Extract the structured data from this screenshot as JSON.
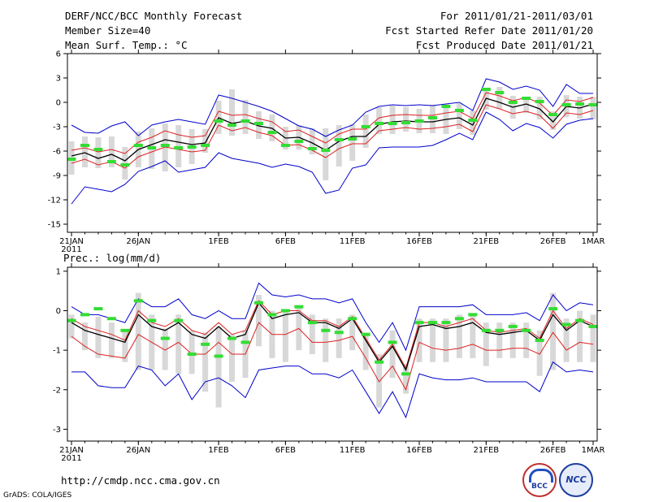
{
  "header": {
    "title": "DERF/NCC/BCC Monthly Forecast",
    "member_size": "Member Size=40",
    "variable": "Mean Surf. Temp.: °C",
    "period": "For 2011/01/21-2011/03/01",
    "started": "Fcst Started Refer Date 2011/01/20",
    "produced": "Fcst Produced Date 2011/01/21"
  },
  "footer": {
    "url": "http://cmdp.ncc.cma.gov.cn",
    "credit": "GrADS: COLA/IGES",
    "logo_left": "BCC",
    "logo_right": "NCC"
  },
  "colors": {
    "envelope": "#0000cc",
    "spread": "#dd2222",
    "mean": "#000000",
    "box": "#d8d8d8",
    "marker": "#33dd33"
  },
  "chart_data": [
    {
      "type": "line",
      "title": "Mean Surf. Temp.: °C",
      "x_ticks": [
        "21JAN",
        "26JAN",
        "1FEB",
        "6FEB",
        "11FEB",
        "16FEB",
        "21FEB",
        "26FEB",
        "1MAR"
      ],
      "x_tick_days": [
        0,
        5,
        11,
        16,
        21,
        26,
        31,
        36,
        39
      ],
      "x_sub_label": "2011",
      "ylim": [
        -16,
        6
      ],
      "yticks": [
        6,
        3,
        0,
        -3,
        -6,
        -9,
        -12,
        -15
      ],
      "series": [
        {
          "name": "mean",
          "values": [
            -6.6,
            -6.2,
            -6.9,
            -6.4,
            -7.2,
            -5.8,
            -5.2,
            -4.6,
            -4.9,
            -5.2,
            -5.0,
            -1.9,
            -2.6,
            -2.3,
            -2.9,
            -3.2,
            -4.4,
            -4.3,
            -5.0,
            -5.9,
            -4.8,
            -4.2,
            -4.2,
            -2.7,
            -2.4,
            -2.3,
            -2.4,
            -2.4,
            -2.1,
            -1.9,
            -2.8,
            0.5,
            0.0,
            -0.6,
            -0.2,
            -0.8,
            -2.4,
            -0.5,
            -0.7,
            -0.2
          ]
        },
        {
          "name": "upper",
          "values": [
            -5.9,
            -5.6,
            -6.1,
            -5.8,
            -6.3,
            -4.9,
            -4.3,
            -3.5,
            -4.0,
            -4.3,
            -4.1,
            -1.1,
            -1.6,
            -1.5,
            -2.0,
            -2.4,
            -3.6,
            -3.4,
            -4.2,
            -5.0,
            -3.9,
            -3.3,
            -3.3,
            -1.9,
            -1.6,
            -1.5,
            -1.6,
            -1.6,
            -1.3,
            -1.1,
            -2.0,
            1.2,
            0.8,
            0.2,
            0.6,
            -0.1,
            -1.6,
            0.3,
            0.1,
            0.6
          ]
        },
        {
          "name": "lower",
          "values": [
            -7.5,
            -7.0,
            -7.7,
            -7.3,
            -8.1,
            -6.7,
            -6.1,
            -5.5,
            -5.8,
            -6.1,
            -5.9,
            -2.8,
            -3.5,
            -3.1,
            -3.7,
            -4.1,
            -5.3,
            -5.2,
            -5.9,
            -6.8,
            -5.7,
            -5.1,
            -5.1,
            -3.5,
            -3.3,
            -3.1,
            -3.3,
            -3.2,
            -3.0,
            -2.7,
            -3.6,
            -0.3,
            -0.8,
            -1.4,
            -1.1,
            -1.6,
            -3.2,
            -1.3,
            -1.5,
            -1.0
          ]
        },
        {
          "name": "max",
          "values": [
            -2.8,
            -3.7,
            -3.8,
            -2.9,
            -2.4,
            -4.1,
            -2.8,
            -2.4,
            -2.1,
            -2.4,
            -2.7,
            0.9,
            0.5,
            0.0,
            -0.5,
            -1.1,
            -2.0,
            -2.9,
            -3.3,
            -4.2,
            -3.4,
            -2.8,
            -1.2,
            -0.5,
            -0.3,
            -0.4,
            -0.3,
            -0.4,
            -0.2,
            0.0,
            -1.0,
            2.9,
            2.5,
            1.6,
            2.0,
            1.5,
            -0.5,
            2.2,
            1.1,
            1.1
          ]
        },
        {
          "name": "min",
          "values": [
            -12.5,
            -10.4,
            -10.7,
            -11.0,
            -10.1,
            -8.5,
            -7.9,
            -7.2,
            -8.6,
            -8.3,
            -8.0,
            -6.2,
            -6.9,
            -7.2,
            -7.5,
            -8.0,
            -7.6,
            -7.9,
            -8.6,
            -11.2,
            -10.8,
            -8.1,
            -7.7,
            -5.6,
            -5.5,
            -5.5,
            -5.5,
            -5.3,
            -4.6,
            -3.8,
            -4.6,
            -1.2,
            -2.1,
            -3.5,
            -2.6,
            -3.1,
            -4.4,
            -2.7,
            -2.2,
            -2.0
          ]
        },
        {
          "name": "ensemble_mean_marker",
          "values": [
            -7.0,
            -5.3,
            -5.8,
            -7.3,
            -7.7,
            -5.3,
            -5.6,
            -5.3,
            -5.6,
            -5.5,
            -5.3,
            -2.3,
            -2.8,
            -2.3,
            -2.6,
            -3.7,
            -5.3,
            -4.8,
            -5.7,
            -5.9,
            -4.6,
            -4.5,
            -3.0,
            -2.6,
            -2.6,
            -2.5,
            -2.3,
            -1.9,
            -0.5,
            -1.0,
            -2.2,
            1.6,
            1.2,
            0.0,
            0.5,
            0.1,
            -1.5,
            -0.3,
            -0.2,
            -0.3
          ]
        },
        {
          "name": "box_top",
          "values": [
            -4.8,
            -4.2,
            -4.3,
            -4.2,
            -5.5,
            -3.6,
            -3.2,
            -2.6,
            -2.8,
            -3.3,
            -3.3,
            0.2,
            1.6,
            0.3,
            -1.1,
            -1.5,
            -3.0,
            -2.8,
            -3.2,
            -3.2,
            -2.8,
            -2.7,
            -1.5,
            -0.6,
            -0.4,
            -0.6,
            -0.8,
            -0.3,
            -0.2,
            -0.1,
            -1.0,
            1.8,
            1.9,
            0.8,
            0.7,
            0.7,
            -1.1,
            0.9,
            0.7,
            0.7
          ]
        },
        {
          "name": "box_bottom",
          "values": [
            -8.9,
            -8.0,
            -8.1,
            -8.0,
            -9.5,
            -8.0,
            -8.2,
            -8.5,
            -8.0,
            -7.6,
            -6.2,
            -3.9,
            -4.1,
            -3.9,
            -4.5,
            -4.8,
            -5.8,
            -5.8,
            -6.4,
            -9.6,
            -7.9,
            -7.2,
            -5.6,
            -3.9,
            -3.9,
            -3.6,
            -3.8,
            -3.8,
            -3.9,
            -3.3,
            -4.0,
            -0.9,
            -0.8,
            -2.0,
            -1.3,
            -2.1,
            -3.4,
            -1.8,
            -2.0,
            -2.1
          ]
        }
      ]
    },
    {
      "type": "line",
      "title": "Prec.: log(mm/d)",
      "x_ticks": [
        "21JAN",
        "26JAN",
        "1FEB",
        "6FEB",
        "11FEB",
        "16FEB",
        "21FEB",
        "26FEB",
        "1MAR"
      ],
      "x_tick_days": [
        0,
        5,
        11,
        16,
        21,
        26,
        31,
        36,
        39
      ],
      "x_sub_label": "2011",
      "ylim": [
        -3.3,
        1.1
      ],
      "yticks": [
        1,
        0,
        -1,
        -2,
        -3
      ],
      "series": [
        {
          "name": "mean",
          "values": [
            -0.3,
            -0.5,
            -0.6,
            -0.7,
            -0.8,
            -0.1,
            -0.4,
            -0.5,
            -0.3,
            -0.6,
            -0.7,
            -0.4,
            -0.7,
            -0.6,
            0.2,
            -0.2,
            -0.1,
            -0.05,
            -0.3,
            -0.3,
            -0.45,
            -0.2,
            -0.75,
            -1.3,
            -0.9,
            -1.5,
            -0.4,
            -0.35,
            -0.45,
            -0.4,
            -0.3,
            -0.55,
            -0.6,
            -0.55,
            -0.5,
            -0.75,
            -0.1,
            -0.5,
            -0.25,
            -0.4
          ]
        },
        {
          "name": "upper",
          "values": [
            -0.2,
            -0.4,
            -0.5,
            -0.6,
            -0.75,
            0.0,
            -0.3,
            -0.4,
            -0.2,
            -0.5,
            -0.6,
            -0.3,
            -0.6,
            -0.5,
            0.25,
            -0.1,
            0.0,
            0.0,
            -0.25,
            -0.25,
            -0.4,
            -0.15,
            -0.7,
            -1.25,
            -0.85,
            -1.45,
            -0.3,
            -0.3,
            -0.4,
            -0.3,
            -0.2,
            -0.5,
            -0.55,
            -0.5,
            -0.45,
            -0.7,
            0.0,
            -0.45,
            -0.2,
            -0.35
          ]
        },
        {
          "name": "lower",
          "values": [
            -0.65,
            -0.9,
            -1.1,
            -1.15,
            -1.2,
            -0.6,
            -0.8,
            -1.0,
            -0.8,
            -1.1,
            -1.1,
            -0.8,
            -1.1,
            -1.1,
            -0.3,
            -0.6,
            -0.6,
            -0.45,
            -0.8,
            -0.8,
            -0.75,
            -0.65,
            -1.2,
            -1.8,
            -1.4,
            -2.0,
            -0.8,
            -0.95,
            -1.0,
            -0.95,
            -0.85,
            -1.0,
            -1.0,
            -0.95,
            -0.95,
            -1.1,
            -0.55,
            -1.0,
            -0.8,
            -0.85
          ]
        },
        {
          "name": "max",
          "values": [
            0.1,
            -0.1,
            -0.1,
            -0.2,
            -0.3,
            0.3,
            0.1,
            0.1,
            0.3,
            -0.1,
            -0.2,
            0.0,
            -0.2,
            -0.2,
            0.7,
            0.4,
            0.35,
            0.4,
            0.3,
            0.3,
            0.2,
            0.3,
            -0.3,
            -0.8,
            -0.3,
            -1.0,
            0.1,
            0.1,
            0.1,
            0.1,
            0.15,
            -0.1,
            -0.1,
            -0.1,
            -0.05,
            -0.25,
            0.4,
            0.0,
            0.2,
            0.15
          ]
        },
        {
          "name": "min",
          "values": [
            -1.55,
            -1.55,
            -1.9,
            -1.95,
            -1.95,
            -1.4,
            -1.5,
            -1.9,
            -1.6,
            -2.25,
            -1.8,
            -1.7,
            -1.9,
            -2.2,
            -1.5,
            -1.45,
            -1.4,
            -1.4,
            -1.6,
            -1.6,
            -1.7,
            -1.5,
            -2.05,
            -2.6,
            -2.05,
            -2.7,
            -1.6,
            -1.7,
            -1.75,
            -1.75,
            -1.7,
            -1.8,
            -1.8,
            -1.8,
            -1.8,
            -2.05,
            -1.3,
            -1.55,
            -1.5,
            -1.55
          ]
        },
        {
          "name": "ensemble_mean_marker",
          "values": [
            -0.25,
            -0.1,
            0.05,
            -0.2,
            -0.5,
            0.25,
            -0.25,
            -0.7,
            -0.25,
            -1.1,
            -0.85,
            -1.15,
            -0.7,
            -0.8,
            0.2,
            -0.1,
            0.0,
            0.1,
            -0.3,
            -0.5,
            -0.55,
            -0.2,
            -0.6,
            -1.3,
            -0.8,
            -1.6,
            -0.3,
            -0.3,
            -0.3,
            -0.2,
            -0.1,
            -0.5,
            -0.5,
            -0.4,
            -0.5,
            -0.75,
            0.05,
            -0.35,
            -0.25,
            -0.4
          ]
        },
        {
          "name": "box_top",
          "values": [
            -0.1,
            -0.3,
            -0.15,
            -0.3,
            -0.5,
            0.45,
            -0.1,
            -0.45,
            -0.1,
            -0.5,
            -0.55,
            -0.4,
            -0.6,
            -0.5,
            0.4,
            0.0,
            0.0,
            0.1,
            -0.1,
            -0.2,
            -0.2,
            -0.1,
            -0.6,
            -1.1,
            -0.5,
            -1.35,
            -0.2,
            -0.2,
            -0.2,
            -0.1,
            -0.1,
            -0.3,
            -0.3,
            -0.3,
            -0.3,
            -0.5,
            0.45,
            -0.2,
            0.0,
            -0.1
          ]
        },
        {
          "name": "box_bottom",
          "values": [
            -0.7,
            -1.0,
            -1.2,
            -1.2,
            -1.3,
            -1.5,
            -1.5,
            -1.5,
            -1.6,
            -1.6,
            -2.05,
            -2.45,
            -1.8,
            -1.7,
            -0.9,
            -1.2,
            -1.3,
            -1.0,
            -1.1,
            -1.3,
            -1.2,
            -1.0,
            -1.5,
            -2.45,
            -1.7,
            -2.1,
            -1.3,
            -1.3,
            -1.3,
            -1.2,
            -1.2,
            -1.4,
            -1.2,
            -1.2,
            -1.2,
            -1.65,
            -1.5,
            -1.3,
            -1.3,
            -1.3
          ]
        }
      ]
    }
  ]
}
